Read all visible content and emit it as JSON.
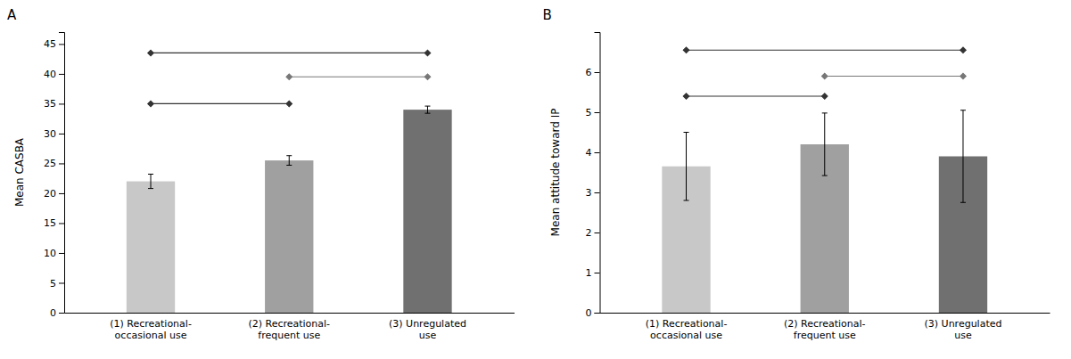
{
  "chart_data": [
    {
      "type": "bar",
      "title": "A",
      "categories": [
        "(1) Recreational-\noccasional use",
        "(2) Recreational-\nfrequent use",
        "(3) Unregulated\nuse"
      ],
      "values": [
        22.0,
        25.5,
        34.0
      ],
      "errors": [
        1.2,
        0.8,
        0.6
      ],
      "colors": [
        "#c8c8c8",
        "#a0a0a0",
        "#707070"
      ],
      "ylabel": "Mean CASBA",
      "ylim": [
        0,
        47
      ],
      "yticks": [
        0,
        5,
        10,
        15,
        20,
        25,
        30,
        35,
        40,
        45
      ],
      "grid": false,
      "sig_lines": [
        {
          "x1": 0,
          "x2": 1,
          "y": 35.0,
          "color": "#333333"
        },
        {
          "x1": 1,
          "x2": 2,
          "y": 39.5,
          "color": "#777777"
        },
        {
          "x1": 0,
          "x2": 2,
          "y": 43.5,
          "color": "#333333"
        }
      ]
    },
    {
      "type": "bar",
      "title": "B",
      "categories": [
        "(1) Recreational-\noccasional use",
        "(2) Recreational-\nfrequent use",
        "(3) Unregulated\nuse"
      ],
      "values": [
        3.65,
        4.2,
        3.9
      ],
      "errors": [
        0.85,
        0.78,
        1.15
      ],
      "colors": [
        "#c8c8c8",
        "#a0a0a0",
        "#707070"
      ],
      "ylabel": "Mean attitude toward IP",
      "ylim": [
        0,
        7.0
      ],
      "yticks": [
        0,
        1,
        2,
        3,
        4,
        5,
        6
      ],
      "grid": false,
      "sig_lines": [
        {
          "x1": 0,
          "x2": 1,
          "y": 5.4,
          "color": "#333333"
        },
        {
          "x1": 1,
          "x2": 2,
          "y": 5.9,
          "color": "#777777"
        },
        {
          "x1": 0,
          "x2": 2,
          "y": 6.55,
          "color": "#333333"
        }
      ]
    }
  ]
}
